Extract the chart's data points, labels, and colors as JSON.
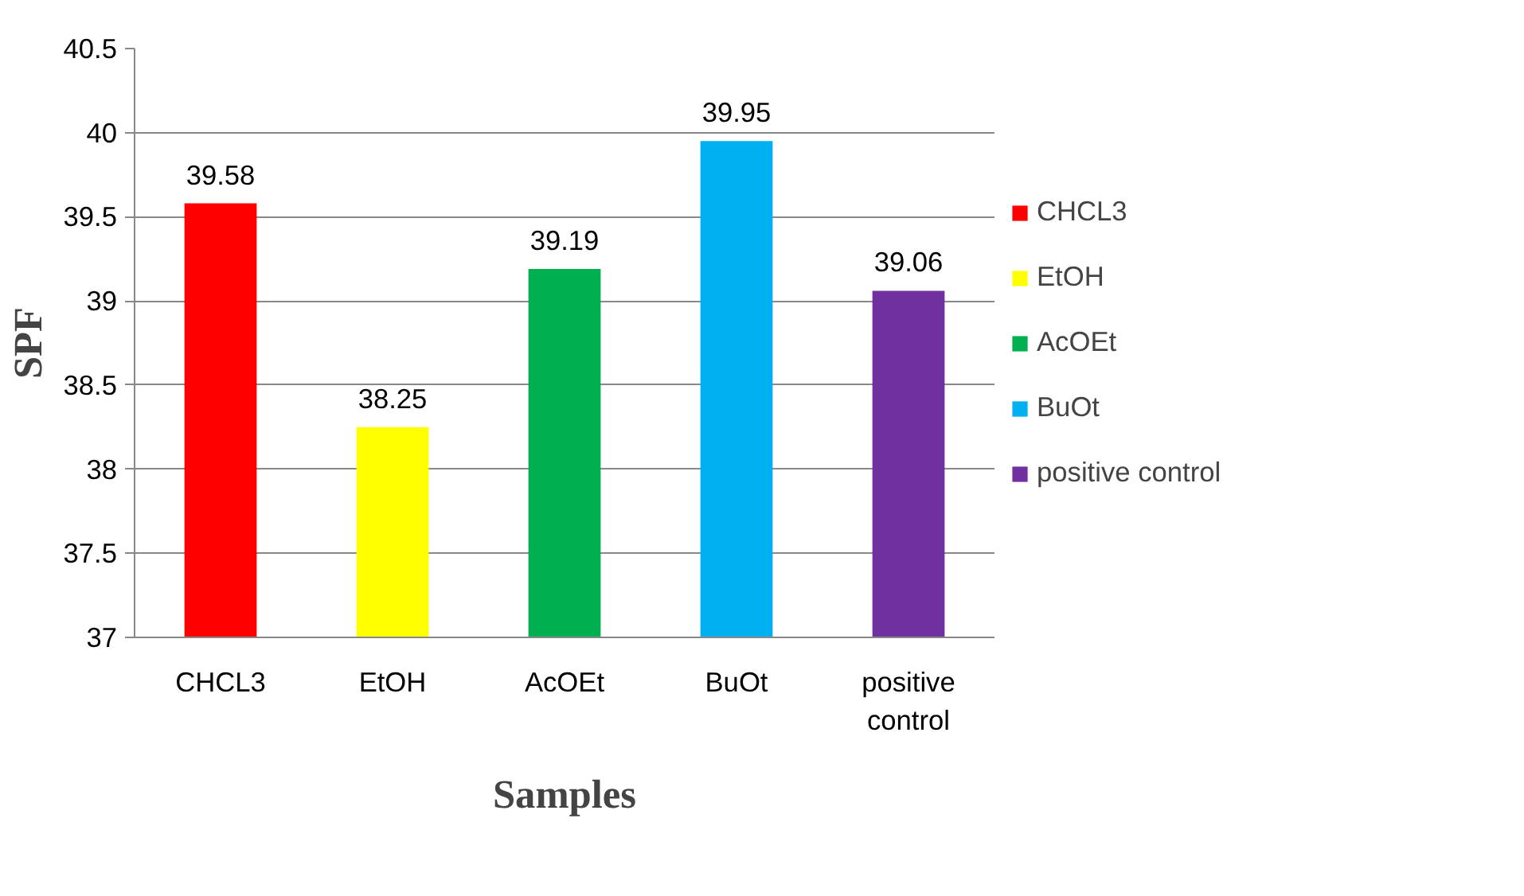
{
  "chart_data": {
    "type": "bar",
    "xlabel": "Samples",
    "ylabel": "SPF",
    "categories": [
      "CHCL3",
      "EtOH",
      "AcOEt",
      "BuOt",
      "positive control"
    ],
    "series": [
      {
        "name": "CHCL3",
        "color": "#ff0000",
        "values": [
          39.58,
          null,
          null,
          null,
          null
        ]
      },
      {
        "name": "EtOH",
        "color": "#ffff00",
        "values": [
          null,
          38.25,
          null,
          null,
          null
        ]
      },
      {
        "name": "AcOEt",
        "color": "#00b050",
        "values": [
          null,
          null,
          39.19,
          null,
          null
        ]
      },
      {
        "name": "BuOt",
        "color": "#00b0f0",
        "values": [
          null,
          null,
          null,
          39.95,
          null
        ]
      },
      {
        "name": "positive control",
        "color": "#7030a0",
        "values": [
          null,
          null,
          null,
          null,
          39.06
        ]
      }
    ],
    "ylim": [
      37,
      40.5
    ],
    "yticks": [
      37,
      37.5,
      38,
      38.5,
      39,
      39.5,
      40,
      40.5
    ],
    "grid": "y",
    "legend": "right",
    "data_labels": true
  }
}
